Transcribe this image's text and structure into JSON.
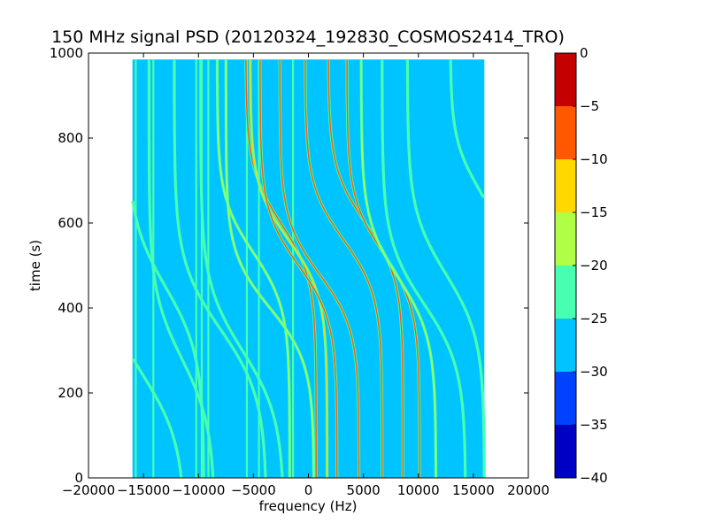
{
  "chart_data": {
    "type": "heatmap",
    "title": "150 MHz signal PSD (20120324_192830_COSMOS2414_TRO)",
    "xlabel": "frequency (Hz)",
    "ylabel": "time (s)",
    "xlim": [
      -20000,
      20000
    ],
    "ylim": [
      0,
      1000
    ],
    "x_ticks": [
      -20000,
      -15000,
      -10000,
      -5000,
      0,
      5000,
      10000,
      15000,
      20000
    ],
    "x_tick_labels": [
      "−20000",
      "−15000",
      "−10000",
      "−5000",
      "0",
      "5000",
      "10000",
      "15000",
      "20000"
    ],
    "y_ticks": [
      0,
      200,
      400,
      600,
      800,
      1000
    ],
    "y_tick_labels": [
      "0",
      "200",
      "400",
      "600",
      "800",
      "1000"
    ],
    "data_extent": {
      "x": [
        -16000,
        16000
      ],
      "y": [
        0,
        985
      ]
    },
    "background_level": -28,
    "colorbar": {
      "ticks": [
        0,
        -5,
        -10,
        -15,
        -20,
        -25,
        -30,
        -35,
        -40
      ],
      "tick_labels": [
        "0",
        "−5",
        "−10",
        "−15",
        "−20",
        "−25",
        "−30",
        "−35",
        "−40"
      ],
      "range": [
        -40,
        0
      ],
      "levels": [
        {
          "from": -40,
          "to": -35,
          "color": "#0000c4"
        },
        {
          "from": -35,
          "to": -30,
          "color": "#0042ff"
        },
        {
          "from": -30,
          "to": -25,
          "color": "#00c4ff"
        },
        {
          "from": -25,
          "to": -20,
          "color": "#46ffb0"
        },
        {
          "from": -20,
          "to": -15,
          "color": "#b0ff46"
        },
        {
          "from": -15,
          "to": -10,
          "color": "#ffd800"
        },
        {
          "from": -10,
          "to": -5,
          "color": "#ff5800"
        },
        {
          "from": -5,
          "to": 0,
          "color": "#c40000"
        }
      ]
    },
    "vertical_lines": [
      {
        "f": -15700,
        "level": -22
      },
      {
        "f": -14100,
        "level": -22
      },
      {
        "f": -10200,
        "level": -22
      },
      {
        "f": -9700,
        "level": -22
      },
      {
        "f": -9100,
        "level": -22
      },
      {
        "f": -5600,
        "level": -22
      },
      {
        "f": -4500,
        "level": -22
      },
      {
        "f": -1400,
        "level": -22
      }
    ],
    "tracks": [
      {
        "f0": -15000,
        "t0": 240,
        "A": 3800,
        "w": 160,
        "level": -22
      },
      {
        "f0": -13000,
        "t0": 450,
        "A": 3500,
        "w": 160,
        "level": -22
      },
      {
        "f0": -11500,
        "t0": 280,
        "A": 3000,
        "w": 160,
        "level": -22
      },
      {
        "f0": -8000,
        "t0": 350,
        "A": 4200,
        "w": 160,
        "level": -22
      },
      {
        "f0": -6000,
        "t0": 300,
        "A": 3800,
        "w": 160,
        "level": -22
      },
      {
        "f0": -5000,
        "t0": 530,
        "A": 3300,
        "w": 130,
        "level": -17
      },
      {
        "f0": -3500,
        "t0": 400,
        "A": 4000,
        "w": 130,
        "level": -17
      },
      {
        "f0": -2500,
        "t0": 600,
        "A": 3200,
        "w": 130,
        "level": -8
      },
      {
        "f0": -1800,
        "t0": 560,
        "A": 3500,
        "w": 130,
        "level": -12
      },
      {
        "f0": -900,
        "t0": 500,
        "A": 3500,
        "w": 130,
        "level": -8
      },
      {
        "f0": 1000,
        "t0": 480,
        "A": 3600,
        "w": 130,
        "level": -8
      },
      {
        "f0": 3200,
        "t0": 560,
        "A": 3500,
        "w": 130,
        "level": -8
      },
      {
        "f0": 5200,
        "t0": 600,
        "A": 3400,
        "w": 130,
        "level": -8
      },
      {
        "f0": 6800,
        "t0": 530,
        "A": 3300,
        "w": 130,
        "level": -8
      },
      {
        "f0": 8200,
        "t0": 470,
        "A": 3400,
        "w": 140,
        "level": -17
      },
      {
        "f0": 10500,
        "t0": 410,
        "A": 3800,
        "w": 150,
        "level": -22
      },
      {
        "f0": 12500,
        "t0": 480,
        "A": 3500,
        "w": 150,
        "level": -22
      },
      {
        "f0": 15500,
        "t0": 680,
        "A": 2600,
        "w": 120,
        "level": -22
      }
    ]
  }
}
